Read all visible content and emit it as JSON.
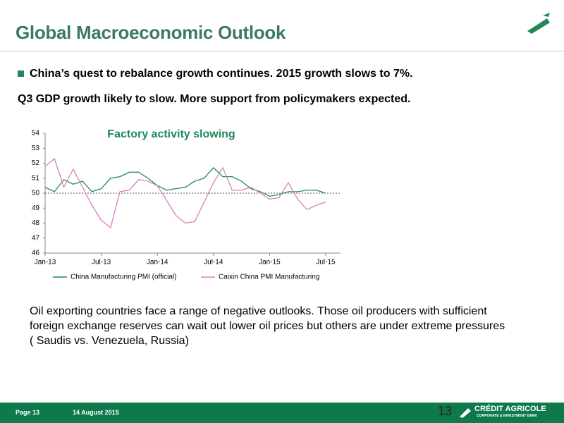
{
  "header": {
    "title": "Global Macroeconomic Outlook"
  },
  "bullet": "China’s quest to rebalance growth continues. 2015 growth slows to 7%.",
  "subheading": "Q3 GDP growth likely to slow. More support from policymakers expected.",
  "chart_data": {
    "type": "line",
    "title": "Factory activity slowing",
    "categories": [
      "Jan-13",
      null,
      null,
      null,
      null,
      null,
      "Jul-13",
      null,
      null,
      null,
      null,
      null,
      "Jan-14",
      null,
      null,
      null,
      null,
      null,
      "Jul-14",
      null,
      null,
      null,
      null,
      null,
      "Jan-15",
      null,
      null,
      null,
      null,
      null,
      "Jul-15"
    ],
    "series": [
      {
        "name": "China Manufacturing PMI (official)",
        "color": "#1e8a5a",
        "values": [
          50.4,
          50.1,
          50.9,
          50.6,
          50.8,
          50.1,
          50.3,
          51.0,
          51.1,
          51.4,
          51.4,
          51.0,
          50.5,
          50.2,
          50.3,
          50.4,
          50.8,
          51.0,
          51.7,
          51.1,
          51.1,
          50.8,
          50.3,
          50.1,
          49.8,
          49.9,
          50.1,
          50.1,
          50.2,
          50.2,
          50.0
        ]
      },
      {
        "name": "Caixin China PMI Manufacturing",
        "color": "#d67fc0",
        "values": [
          51.8,
          52.3,
          50.4,
          51.6,
          50.4,
          49.2,
          48.2,
          47.7,
          50.1,
          50.2,
          50.9,
          50.8,
          50.5,
          49.5,
          48.5,
          48.0,
          48.1,
          49.4,
          50.7,
          51.7,
          50.2,
          50.2,
          50.4,
          50.0,
          49.6,
          49.7,
          50.7,
          49.6,
          48.9,
          49.2,
          49.4
        ]
      }
    ],
    "reference_line": 50,
    "ylim": [
      46,
      54
    ],
    "yticks": [
      46,
      47,
      48,
      49,
      50,
      51,
      52,
      53,
      54
    ],
    "legend": "bottom"
  },
  "body": "Oil exporting countries face a range of negative outlooks. Those oil producers with sufficient foreign exchange reserves can wait out lower oil prices but others are under extreme pressures ( Saudis vs. Venezuela, Russia)",
  "footer": {
    "page": "Page 13",
    "date": "14 August 2015",
    "slide_number": "13",
    "brand": "CRÉDIT AGRICOLE",
    "brand_sub": "CORPORATE & INVESTMENT BANK"
  }
}
